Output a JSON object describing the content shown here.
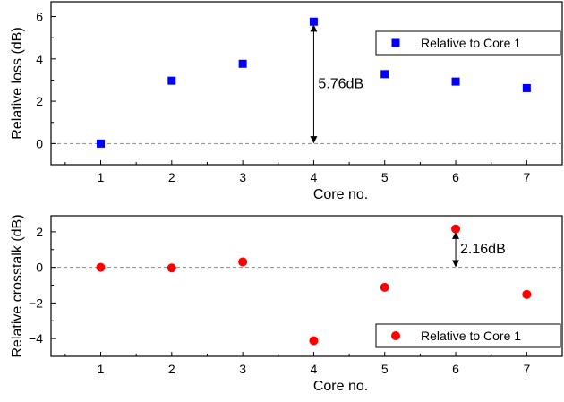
{
  "chart_data": [
    {
      "type": "scatter",
      "xlabel": "Core no.",
      "ylabel": "Relative loss (dB)",
      "x": [
        1,
        2,
        3,
        4,
        5,
        6,
        7
      ],
      "xlim": [
        0.3,
        7.5
      ],
      "ylim": [
        -1,
        6.7
      ],
      "yticks": [
        0,
        2,
        4,
        6
      ],
      "xticks": [
        1,
        2,
        3,
        4,
        5,
        6,
        7
      ],
      "series": [
        {
          "name": "Relative to Core 1",
          "marker": "square",
          "color": "#0000ff",
          "values": [
            0,
            2.97,
            3.77,
            5.76,
            3.28,
            2.93,
            2.62
          ]
        }
      ],
      "reference_line": {
        "y": 0,
        "style": "dashed"
      },
      "annotation": {
        "text": "5.76dB",
        "x": 4,
        "from": 0,
        "to": 5.76
      },
      "legend": "top-right"
    },
    {
      "type": "scatter",
      "xlabel": "Core no.",
      "ylabel": "Relative crosstalk (dB)",
      "x": [
        1,
        2,
        3,
        4,
        5,
        6,
        7
      ],
      "xlim": [
        0.3,
        7.5
      ],
      "ylim": [
        -5,
        2.9
      ],
      "yticks": [
        -4,
        -2,
        0,
        2
      ],
      "xticks": [
        1,
        2,
        3,
        4,
        5,
        6,
        7
      ],
      "series": [
        {
          "name": "Relative to Core 1",
          "marker": "circle",
          "color": "#ff0000",
          "values": [
            0,
            -0.03,
            0.31,
            -4.12,
            -1.12,
            2.16,
            -1.52
          ]
        }
      ],
      "reference_line": {
        "y": 0,
        "style": "dashed"
      },
      "annotation": {
        "text": "2.16dB",
        "x": 6,
        "from": 0,
        "to": 2.16
      },
      "legend": "bottom-right"
    }
  ]
}
